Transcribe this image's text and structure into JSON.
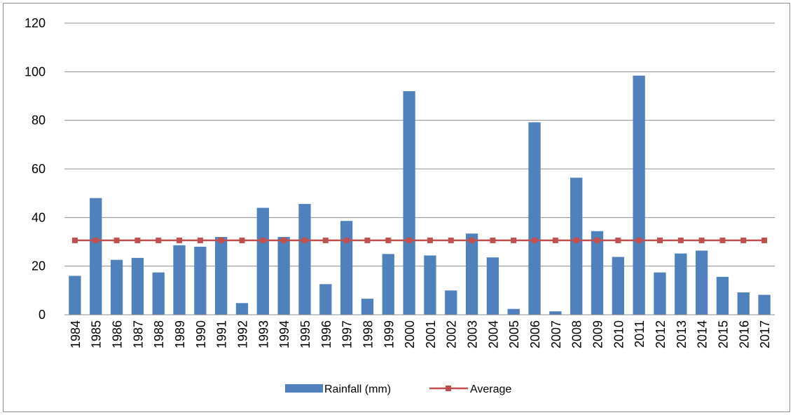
{
  "chart_data": {
    "type": "bar",
    "title": "",
    "xlabel": "",
    "ylabel": "",
    "categories": [
      "1984",
      "1985",
      "1986",
      "1987",
      "1988",
      "1989",
      "1990",
      "1991",
      "1992",
      "1993",
      "1994",
      "1995",
      "1996",
      "1997",
      "1998",
      "1999",
      "2000",
      "2001",
      "2002",
      "2003",
      "2004",
      "2005",
      "2006",
      "2007",
      "2008",
      "2009",
      "2010",
      "2011",
      "2012",
      "2013",
      "2014",
      "2015",
      "2016",
      "2017"
    ],
    "series": [
      {
        "name": "Rainfall (mm)",
        "type": "bar",
        "color": "#4F81BD",
        "values": [
          16,
          48,
          22.6,
          23.4,
          17.4,
          28.6,
          28,
          32,
          4.8,
          44,
          32,
          45.6,
          12.6,
          38.6,
          6.6,
          25,
          92,
          24.4,
          10,
          33.4,
          23.6,
          2.4,
          79.2,
          1.4,
          56.4,
          34.4,
          23.8,
          98.4,
          17.4,
          25.2,
          26.4,
          15.6,
          9.2,
          8.2
        ]
      },
      {
        "name": "Average",
        "type": "line",
        "color": "#C0504D",
        "marker": "square",
        "values": [
          30.6,
          30.6,
          30.6,
          30.6,
          30.6,
          30.6,
          30.6,
          30.6,
          30.6,
          30.6,
          30.6,
          30.6,
          30.6,
          30.6,
          30.6,
          30.6,
          30.6,
          30.6,
          30.6,
          30.6,
          30.6,
          30.6,
          30.6,
          30.6,
          30.6,
          30.6,
          30.6,
          30.6,
          30.6,
          30.6,
          30.6,
          30.6,
          30.6,
          30.6
        ]
      }
    ],
    "ylim": [
      0,
      120
    ],
    "yticks": [
      0,
      20,
      40,
      60,
      80,
      100,
      120
    ],
    "grid": true,
    "gridline_color": "#8c8c8c",
    "legend_position": "bottom"
  }
}
